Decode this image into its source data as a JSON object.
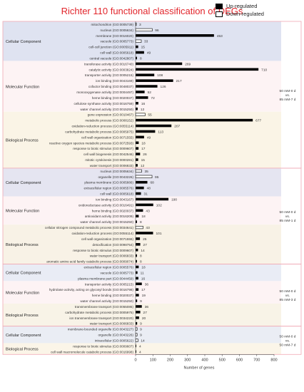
{
  "chart_data": {
    "type": "bar",
    "orientation": "horizontal",
    "title": "Richter 110 functional classification of DEGs",
    "xlabel": "Number of genes",
    "xlim": [
      0,
      800
    ],
    "xticks": [
      0,
      100,
      200,
      300,
      400,
      500,
      600,
      700,
      800
    ],
    "legend": {
      "position": "top-right",
      "entries": [
        {
          "name": "Up-regulated",
          "color": "#000000"
        },
        {
          "name": "Down-regulated",
          "color": "#ffffff"
        }
      ]
    },
    "colors": {
      "panel1_cell": "#dfe3f1",
      "panel1_mol": "#fdf3f4",
      "panel1_bio": "#faf4e6",
      "panel2_cell": "#e5e5f1",
      "panel2_mol": "#fdf3f4",
      "panel2_bio": "#f8f2e6",
      "panel3_cell": "#e9ecf5",
      "panel3_mol": "#fdf3f4",
      "panel3_bio": "#f8f3e7",
      "panel4_cell": "#eaedf4",
      "panel4_bio": "#fbf5e8",
      "frame": "#f0a8b4",
      "title": "#e2252b"
    },
    "panels": [
      {
        "comparison": [
          "50 mM-0 d",
          "vs.",
          "85 mM-7 d"
        ],
        "groups": [
          {
            "name": "Cellular Component",
            "items": [
              {
                "label": "mitochondrion (GO:0005739)",
                "type": "down",
                "value": 3
              },
              {
                "label": "nucleus (GO:0005634)",
                "type": "down",
                "value": 96
              },
              {
                "label": "membrane (GO:0016020)",
                "type": "up",
                "value": 453
              },
              {
                "label": "vacuole (GO:0005773)",
                "type": "down",
                "value": 33
              },
              {
                "label": "cell-cell junction (GO:0005911)",
                "type": "up",
                "value": 15
              },
              {
                "label": "cell wall (GO:0005618)",
                "type": "up",
                "value": 49
              },
              {
                "label": "central vacuole (GO:0042807)",
                "type": "up",
                "value": 8
              }
            ]
          },
          {
            "name": "Molecular Function",
            "items": [
              {
                "label": "transferase activity (GO:0016740)",
                "type": "up",
                "value": 269
              },
              {
                "label": "catalytic activity (GO:0003824)",
                "type": "up",
                "value": 710
              },
              {
                "label": "transporter activity (GO:0005215)",
                "type": "up",
                "value": 108
              },
              {
                "label": "ion binding (GO:0043169)",
                "type": "up",
                "value": 217
              },
              {
                "label": "cofactor binding (GO:0048037)",
                "type": "up",
                "value": 126
              },
              {
                "label": "monooxygenase activity (GO:0004497)",
                "type": "up",
                "value": 52
              },
              {
                "label": "heme binding (GO:0020037)",
                "type": "up",
                "value": 72
              },
              {
                "label": "cellulose synthase activity (GO:0016759)",
                "type": "up",
                "value": 16
              },
              {
                "label": "water channel activity (GO:0015250)",
                "type": "up",
                "value": 12
              }
            ]
          },
          {
            "name": "Biological Process",
            "items": [
              {
                "label": "gene expression (GO:0010467)",
                "type": "down",
                "value": 55
              },
              {
                "label": "metabolic process (GO:0008152)",
                "type": "up",
                "value": 677
              },
              {
                "label": "oxidation-reduction process (GO:0055114)",
                "type": "up",
                "value": 207
              },
              {
                "label": "carbohydrate metabolic process (GO:0005975)",
                "type": "up",
                "value": 113
              },
              {
                "label": "cell wall organization (GO:0071555)",
                "type": "up",
                "value": 49
              },
              {
                "label": "reactive oxygen species metabolic process (GO:0072593)",
                "type": "up",
                "value": 18
              },
              {
                "label": "response to biotic stimulus (GO:0009607)",
                "type": "up",
                "value": 17
              },
              {
                "label": "cell wall biogenesis (GO:0042546)",
                "type": "up",
                "value": 26
              },
              {
                "label": "mitotic cytokinesis (GO:0000281)",
                "type": "up",
                "value": 15
              },
              {
                "label": "water transport (GO:0006833)",
                "type": "up",
                "value": 12
              }
            ]
          }
        ]
      },
      {
        "comparison": [
          "50 mM-0 d",
          "vs.",
          "85 mM-1 d"
        ],
        "groups": [
          {
            "name": "Cellular Component",
            "items": [
              {
                "label": "nucleus (GO:0005634)",
                "type": "down",
                "value": 35
              },
              {
                "label": "organelle (GO:0043226)",
                "type": "down",
                "value": 95
              },
              {
                "label": "plasma membrane (GO:0005886)",
                "type": "up",
                "value": 68
              },
              {
                "label": "extracellular region (GO:0005576)",
                "type": "up",
                "value": 48
              },
              {
                "label": "cell wall (GO:0005618)",
                "type": "up",
                "value": 31
              }
            ]
          },
          {
            "name": "Molecular Function",
            "items": [
              {
                "label": "ion binding (GO:0043167)",
                "type": "up",
                "value": 190
              },
              {
                "label": "oxidoreductase activity (GO:0016491)",
                "type": "up",
                "value": 102
              },
              {
                "label": "heme binding (GO:0020037)",
                "type": "up",
                "value": 43
              },
              {
                "label": "antioxidant activity (GO:0016209)",
                "type": "up",
                "value": 18
              },
              {
                "label": "water channel activity (GO:0015250)",
                "type": "up",
                "value": 8
              }
            ]
          },
          {
            "name": "Biological Process",
            "items": [
              {
                "label": "cellular nitrogen compound metabolic process (GO:0034641)",
                "type": "down",
                "value": 43
              },
              {
                "label": "oxidation-reduction process (GO:0055114)",
                "type": "up",
                "value": 101
              },
              {
                "label": "cell wall organization (GO:0071555)",
                "type": "up",
                "value": 25
              },
              {
                "label": "detoxification (GO:0098754)",
                "type": "up",
                "value": 27
              },
              {
                "label": "response to biotic stimulus (GO:0009607)",
                "type": "up",
                "value": 14
              },
              {
                "label": "water transport (GO:0006833)",
                "type": "up",
                "value": 8
              },
              {
                "label": "aromatic amino acid family catabolic process (GO:0009074)",
                "type": "up",
                "value": 8
              }
            ]
          }
        ]
      },
      {
        "comparison": [
          "50 mM-0 d",
          "vs.",
          "85 mM-3 d"
        ],
        "groups": [
          {
            "name": "Cellular Component",
            "items": [
              {
                "label": "extracellular region (GO:0005576)",
                "type": "up",
                "value": 18
              },
              {
                "label": "vacuole (GO:0005773)",
                "type": "up",
                "value": 11
              },
              {
                "label": "plasma membrane part (GO:0044459)",
                "type": "up",
                "value": 16
              }
            ]
          },
          {
            "name": "Molecular Function",
            "items": [
              {
                "label": "transporter activity (GO:0005215)",
                "type": "up",
                "value": 36
              },
              {
                "label": "hydrolase activity, acting on glycosyl bonds (GO:0016798)",
                "type": "up",
                "value": 17
              },
              {
                "label": "heme binding (GO:0020037)",
                "type": "up",
                "value": 19
              },
              {
                "label": "water channel activity (GO:0015250)",
                "type": "up",
                "value": 9
              }
            ]
          },
          {
            "name": "Biological Process",
            "items": [
              {
                "label": "transmembrane transport (GO:0055085)",
                "type": "up",
                "value": 36
              },
              {
                "label": "carbohydrate metabolic process (GO:0005975)",
                "type": "up",
                "value": 27
              },
              {
                "label": "ion transmembrane transport (GO:0034220)",
                "type": "up",
                "value": 20
              },
              {
                "label": "water transport (GO:0006833)",
                "type": "up",
                "value": 9
              }
            ]
          }
        ]
      },
      {
        "comparison": [
          "50 mM-0 d",
          "vs.",
          "50 mM-7 d"
        ],
        "groups": [
          {
            "name": "Cellular Component",
            "items": [
              {
                "label": "membrane-bounded organelle (GO:0043227)",
                "type": "down",
                "value": 9
              },
              {
                "label": "organelle (GO:0043226)",
                "type": "down",
                "value": 9
              },
              {
                "label": "intracellular (GO:0005622)",
                "type": "down",
                "value": 14
              }
            ]
          },
          {
            "name": "Biological Process",
            "items": [
              {
                "label": "response to biotic stimulus (GO:0009607)",
                "type": "up",
                "value": 4
              },
              {
                "label": "cell wall macromolecule catabolic process (GO:0016998)",
                "type": "up",
                "value": 4
              }
            ]
          }
        ]
      }
    ]
  }
}
